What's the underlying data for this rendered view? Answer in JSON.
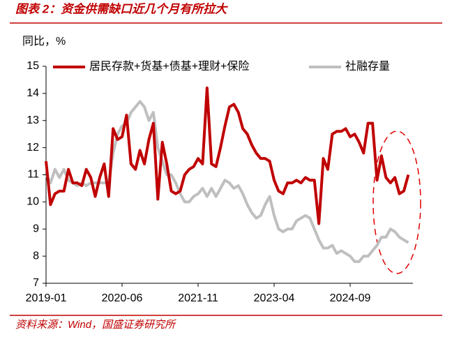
{
  "chart_data": {
    "type": "line",
    "title": "图表 2：资金供需缺口近几个月有所拉大",
    "y_label": "同比，%",
    "source": "资料来源：Wind，国盛证券研究所",
    "categories": [
      "2019-01",
      null,
      null,
      null,
      null,
      null,
      null,
      null,
      null,
      null,
      null,
      null,
      null,
      null,
      null,
      null,
      null,
      "2020-06",
      null,
      null,
      null,
      null,
      null,
      null,
      null,
      null,
      null,
      null,
      null,
      null,
      null,
      null,
      null,
      null,
      "2021-11",
      null,
      null,
      null,
      null,
      null,
      null,
      null,
      null,
      null,
      null,
      null,
      null,
      null,
      null,
      null,
      null,
      "2023-04",
      null,
      null,
      null,
      null,
      null,
      null,
      null,
      null,
      null,
      null,
      null,
      null,
      null,
      null,
      null,
      null,
      "2024-09",
      null,
      null,
      null,
      null,
      null,
      null,
      null,
      null,
      null,
      null,
      null,
      null,
      null
    ],
    "series": [
      {
        "name": "居民存款+货基+债基+理财+保险",
        "color": "#c00000",
        "values": [
          11.5,
          9.9,
          10.3,
          10.4,
          10.4,
          11.2,
          10.7,
          10.7,
          10.6,
          11.2,
          10.9,
          10.2,
          10.9,
          11.4,
          10.2,
          12.7,
          12.3,
          12.4,
          13.2,
          11.4,
          11.2,
          11.9,
          11.4,
          12.3,
          12.9,
          10.1,
          12.2,
          11.4,
          10.4,
          10.3,
          10.4,
          11.0,
          11.2,
          11.3,
          11.6,
          11.4,
          14.2,
          11.4,
          11.3,
          12.0,
          12.8,
          13.5,
          13.6,
          13.3,
          12.7,
          12.5,
          12.1,
          11.8,
          11.6,
          11.6,
          11.5,
          10.8,
          10.4,
          10.3,
          10.7,
          10.7,
          10.8,
          10.7,
          10.9,
          10.8,
          10.8,
          9.2,
          11.6,
          11.2,
          12.5,
          12.6,
          12.6,
          12.7,
          12.4,
          12.5,
          12.2,
          11.8,
          12.9,
          12.9,
          10.8,
          11.7,
          10.9,
          10.7,
          10.9,
          10.3,
          10.4,
          11.0
        ]
      },
      {
        "name": "社融存量",
        "color": "#bfbfbf",
        "values": [
          11.0,
          10.7,
          11.2,
          10.9,
          11.2,
          10.8,
          10.7,
          10.6,
          10.7,
          10.6,
          10.7,
          10.7,
          10.7,
          10.7,
          10.7,
          11.8,
          12.5,
          12.8,
          12.9,
          13.3,
          13.5,
          13.7,
          13.5,
          13.0,
          13.3,
          12.0,
          11.5,
          11.0,
          11.0,
          10.7,
          10.3,
          10.0,
          10.0,
          10.2,
          10.3,
          10.5,
          10.2,
          10.5,
          10.2,
          10.5,
          10.8,
          10.7,
          10.5,
          10.6,
          10.3,
          9.9,
          9.6,
          9.4,
          9.5,
          9.9,
          10.2,
          9.5,
          9.0,
          8.9,
          9.0,
          9.0,
          9.3,
          9.4,
          9.5,
          9.4,
          9.0,
          8.6,
          8.3,
          8.3,
          8.4,
          8.1,
          8.2,
          8.1,
          8.0,
          7.8,
          7.8,
          8.0,
          8.0,
          8.2,
          8.4,
          8.7,
          8.7,
          9.0,
          8.9,
          8.7,
          8.6,
          8.5
        ]
      }
    ],
    "ylim": [
      7,
      15
    ],
    "yticks": [
      7,
      8,
      9,
      10,
      11,
      12,
      13,
      14,
      15
    ]
  }
}
